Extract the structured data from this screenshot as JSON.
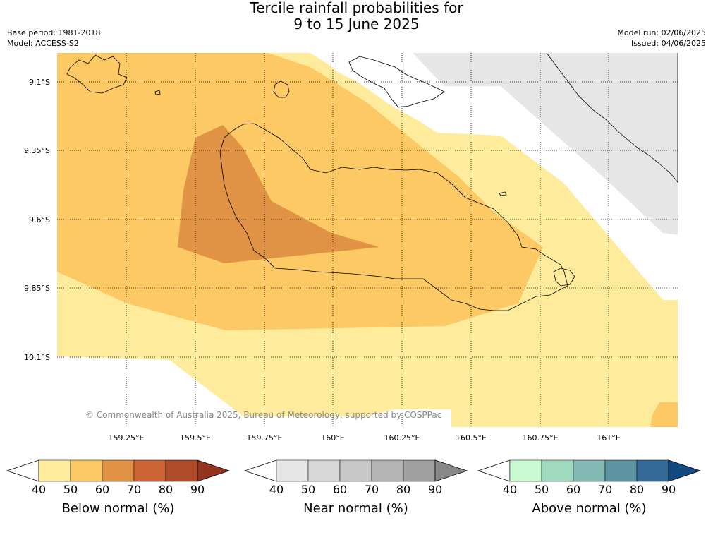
{
  "header": {
    "title_line1": "Tercile rainfall probabilities for",
    "title_line2": "9 to 15 June 2025",
    "base_period": "Base period: 1981-2018",
    "model": "Model: ACCESS-S2",
    "model_run": "Model run: 02/06/2025",
    "issued": "Issued: 04/06/2025"
  },
  "map": {
    "lat_ticks": [
      "9.1°S",
      "9.35°S",
      "9.6°S",
      "9.85°S",
      "10.1°S"
    ],
    "lon_ticks": [
      "159.25°E",
      "159.5°E",
      "159.75°E",
      "160°E",
      "160.25°E",
      "160.5°E",
      "160.75°E",
      "161°E"
    ],
    "copyright": "© Commonwealth of Australia 2025, Bureau of Meteorology, supported by COSPPac",
    "colors": {
      "below_40_50": "#ffeb9c",
      "below_50_60": "#fdc964",
      "below_60_70": "#e09345",
      "near_50_60": "#e6e6e6"
    }
  },
  "colorbars": [
    {
      "label": "Below normal (%)",
      "ticks": [
        "40",
        "50",
        "60",
        "70",
        "80",
        "90"
      ],
      "colors": [
        "#ffffff",
        "#ffeb9c",
        "#fdc964",
        "#e09345",
        "#cd6536",
        "#b04b2a",
        "#95341e"
      ]
    },
    {
      "label": "Near normal (%)",
      "ticks": [
        "40",
        "50",
        "60",
        "70",
        "80",
        "90"
      ],
      "colors": [
        "#ffffff",
        "#e6e6e6",
        "#d7d7d7",
        "#c8c8c8",
        "#b4b4b4",
        "#a0a0a0",
        "#888888"
      ]
    },
    {
      "label": "Above normal (%)",
      "ticks": [
        "40",
        "50",
        "60",
        "70",
        "80",
        "90"
      ],
      "colors": [
        "#ffffff",
        "#c9fad1",
        "#a1dbbf",
        "#82b9b4",
        "#5d95a2",
        "#356998",
        "#144a83"
      ]
    }
  ]
}
